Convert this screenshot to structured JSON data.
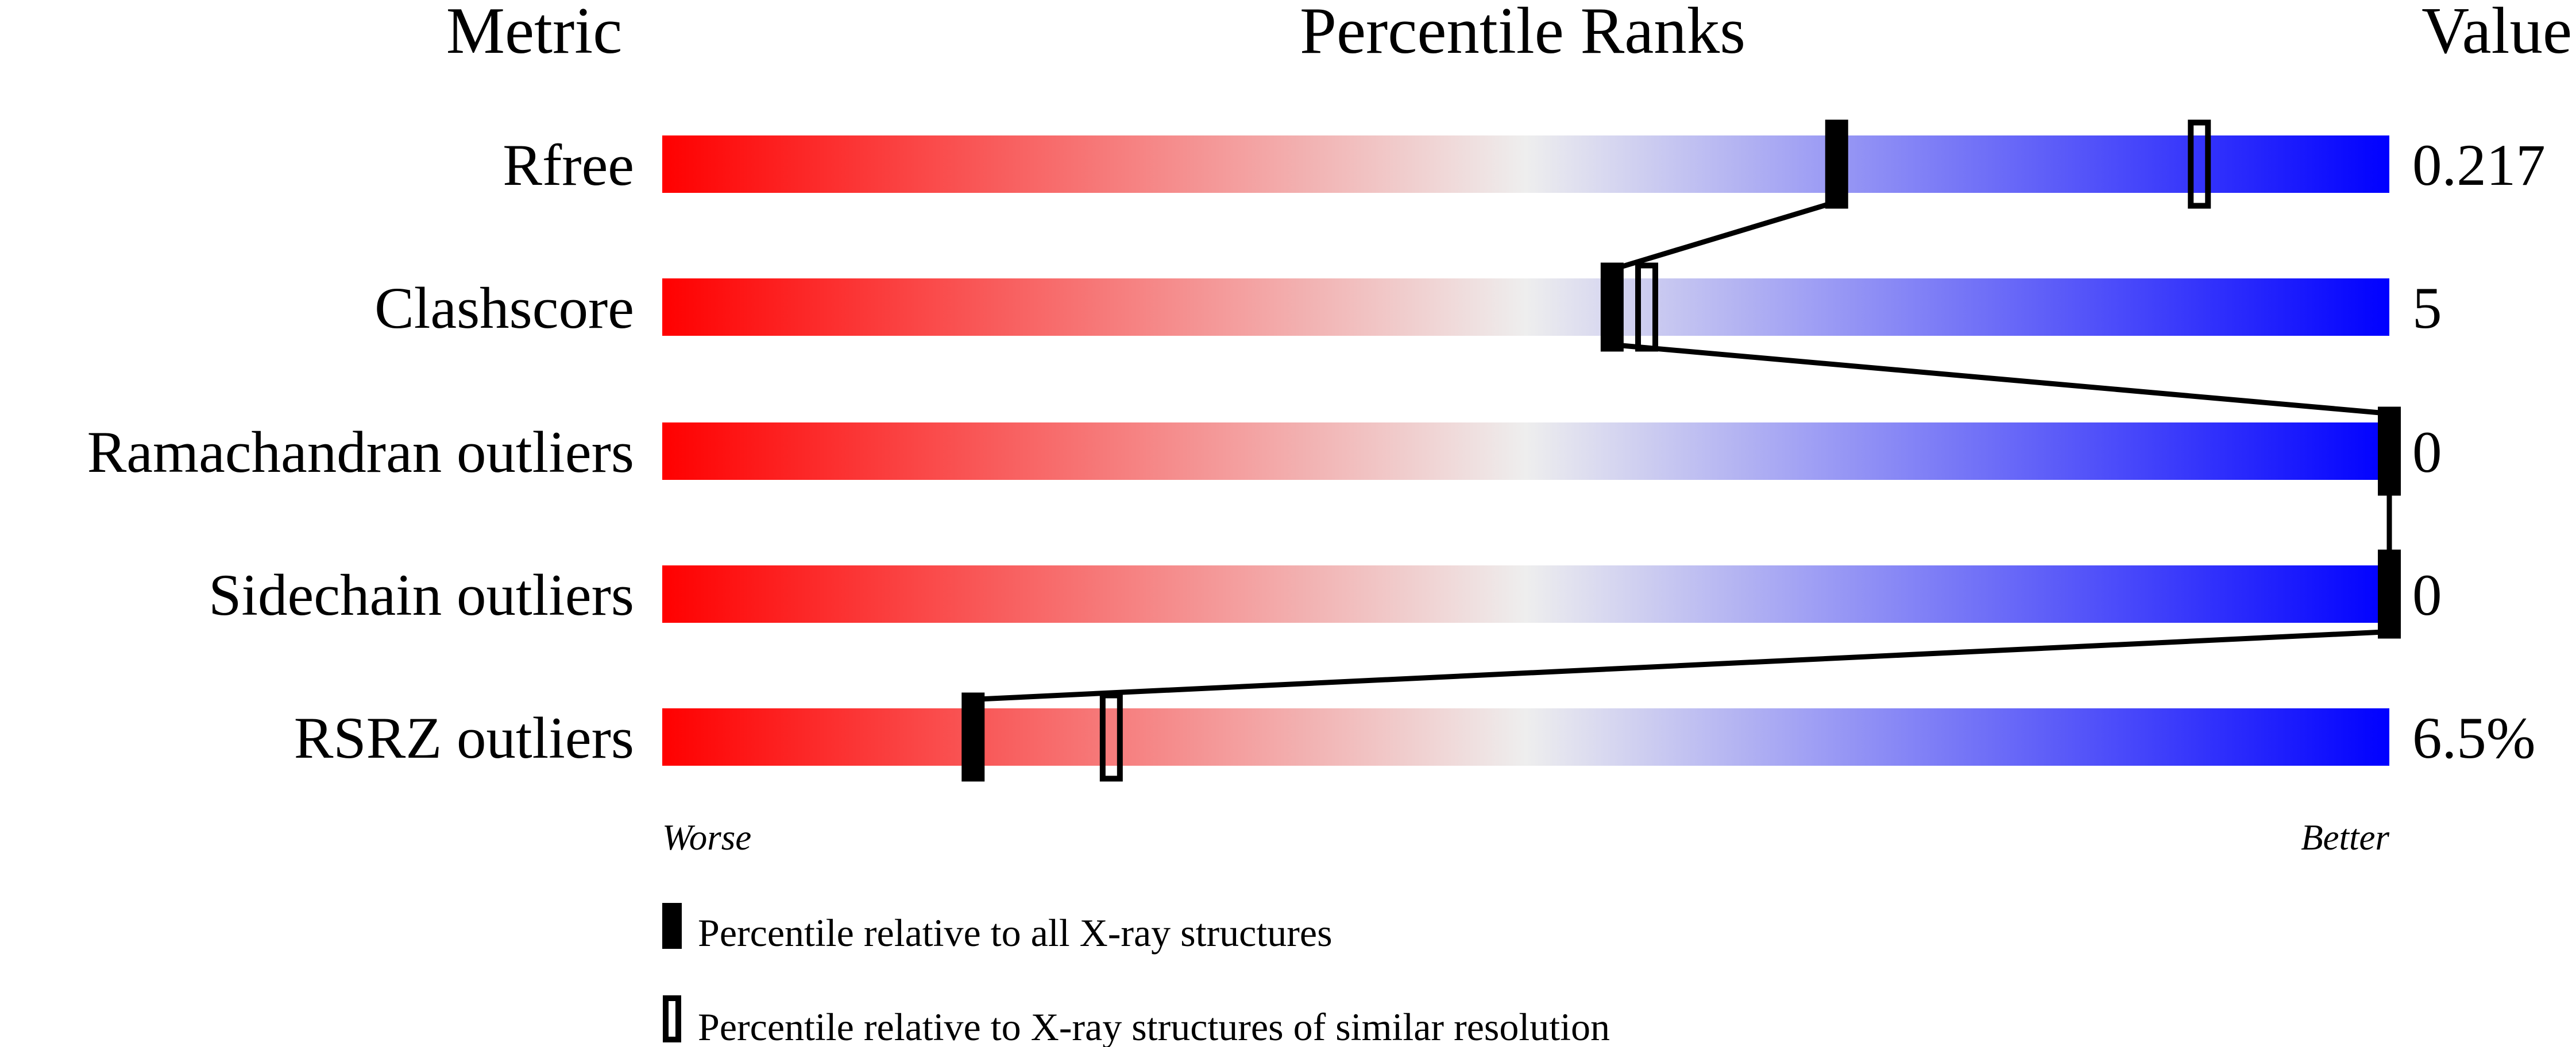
{
  "chart_data": {
    "type": "bar",
    "headers": {
      "metric": "Metric",
      "ranks": "Percentile Ranks",
      "value": "Value"
    },
    "xlim": [
      0,
      100
    ],
    "metrics": [
      {
        "label": "Rfree",
        "value": "0.217",
        "percentile_all": 68,
        "percentile_similar": 89
      },
      {
        "label": "Clashscore",
        "value": "5",
        "percentile_all": 55,
        "percentile_similar": 57
      },
      {
        "label": "Ramachandran outliers",
        "value": "0",
        "percentile_all": 100,
        "percentile_similar": null
      },
      {
        "label": "Sidechain outliers",
        "value": "0",
        "percentile_all": 100,
        "percentile_similar": null
      },
      {
        "label": "RSRZ outliers",
        "value": "6.5%",
        "percentile_all": 18,
        "percentile_similar": 26
      }
    ],
    "axis_labels": {
      "left": "Worse",
      "right": "Better"
    },
    "legend": [
      {
        "marker": "filled",
        "label": "Percentile relative to all X-ray structures"
      },
      {
        "marker": "open",
        "label": "Percentile relative to X-ray structures of similar resolution"
      }
    ],
    "colors": {
      "worse": "#ff0000",
      "middle": "#eeeeee",
      "better": "#0000ff",
      "marker": "#000000"
    }
  }
}
